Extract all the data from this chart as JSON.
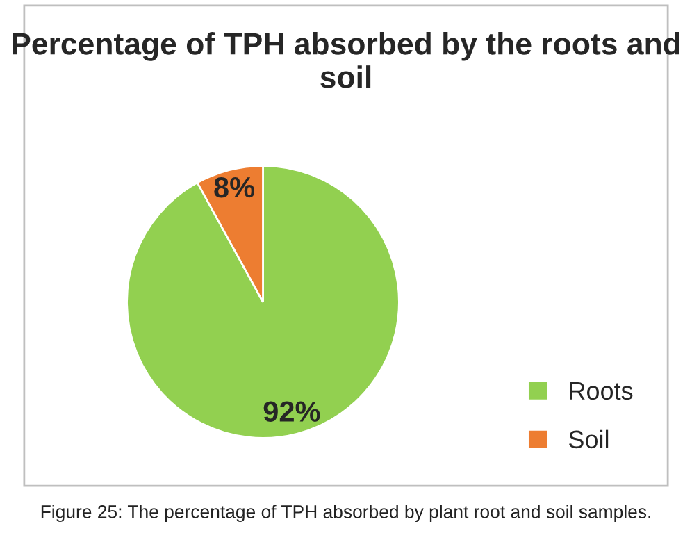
{
  "chart_data": {
    "type": "pie",
    "title": "Percentage of TPH absorbed by the roots and soil",
    "categories": [
      "Roots",
      "Soil"
    ],
    "values": [
      92,
      8
    ],
    "colors": [
      "#92d050",
      "#ed7d31"
    ],
    "value_labels": [
      "92%",
      "8%"
    ],
    "legend": "right",
    "annotations": [
      "Figure 25: The percentage of TPH absorbed by plant root and soil samples."
    ]
  }
}
